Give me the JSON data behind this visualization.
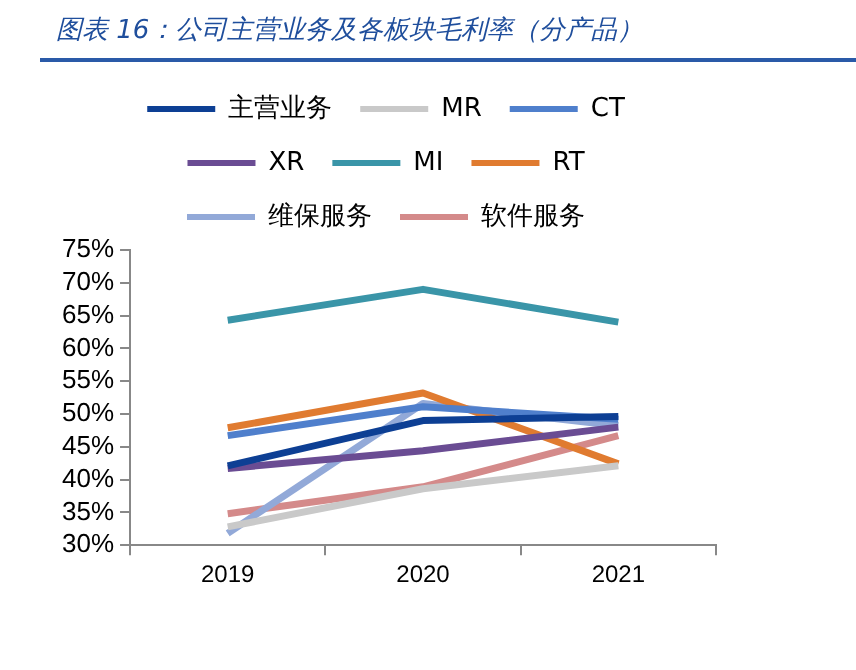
{
  "chart_data": {
    "type": "line",
    "title": "图表 16：公司主营业务及各板块毛利率（分产品）",
    "categories": [
      "2019",
      "2020",
      "2021"
    ],
    "series": [
      {
        "name": "主营业务",
        "color": "#0d3f94",
        "values": [
          42.1,
          49.0,
          49.6
        ]
      },
      {
        "name": "MR",
        "color": "#c9c9c9",
        "values": [
          32.8,
          38.6,
          42.1
        ]
      },
      {
        "name": "CT",
        "color": "#4f7fcc",
        "values": [
          46.7,
          51.1,
          49.2
        ]
      },
      {
        "name": "XR",
        "color": "#6a4c93",
        "values": [
          41.7,
          44.4,
          48.0
        ]
      },
      {
        "name": "MI",
        "color": "#3a95a8",
        "values": [
          64.3,
          69.0,
          64.0
        ]
      },
      {
        "name": "RT",
        "color": "#e07b30",
        "values": [
          47.9,
          53.2,
          42.4
        ]
      },
      {
        "name": "维保服务",
        "color": "#92a9d8",
        "values": [
          31.8,
          51.6,
          48.2
        ]
      },
      {
        "name": "软件服务",
        "color": "#d48a8a",
        "values": [
          34.8,
          38.9,
          46.7
        ]
      }
    ],
    "ylim": [
      30,
      75
    ],
    "yticks": [
      {
        "value": 30,
        "label": "30%"
      },
      {
        "value": 35,
        "label": "35%"
      },
      {
        "value": 40,
        "label": "40%"
      },
      {
        "value": 45,
        "label": "45%"
      },
      {
        "value": 50,
        "label": "50%"
      },
      {
        "value": 55,
        "label": "55%"
      },
      {
        "value": 60,
        "label": "60%"
      },
      {
        "value": 65,
        "label": "65%"
      },
      {
        "value": 70,
        "label": "70%"
      },
      {
        "value": 75,
        "label": "75%"
      }
    ],
    "grid": false,
    "legend": "top",
    "marker": "none",
    "line_style": "solid"
  }
}
